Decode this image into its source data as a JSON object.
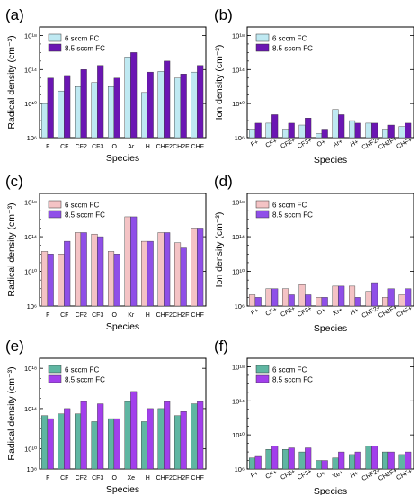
{
  "colors": {
    "ltblue": "#bfe9f2",
    "purple_dark": "#6b16b3",
    "pink": "#f4c3c5",
    "purple": "#8f4fe8",
    "teal": "#5fb6a2",
    "violet": "#a23fec",
    "axis": "#000000"
  },
  "chart_data": [
    {
      "panel": "(a)",
      "type": "bar",
      "scale": "log",
      "ylabel": "Radical density (cm⁻³)",
      "xlabel": "Species",
      "ylim": [
        1000000.0,
        1e+19
      ],
      "ticks": [
        "10¹⁸",
        "10¹⁴",
        "10¹⁰",
        "10⁶"
      ],
      "legend_position": "top-left",
      "categories": [
        "F",
        "CF",
        "CF2",
        "CF3",
        "O",
        "Ar",
        "H",
        "CHF2",
        "CH2F",
        "CHF"
      ],
      "series": [
        {
          "name": "6 sccm FC",
          "color_key": "ltblue",
          "values": [
            10000000000.0,
            300000000000.0,
            1000000000000.0,
            3000000000000.0,
            1000000000000.0,
            3000000000000000.0,
            200000000000.0,
            60000000000000.0,
            10000000000000.0,
            50000000000000.0
          ]
        },
        {
          "name": "8.5 sccm FC",
          "color_key": "purple_dark",
          "values": [
            10000000000000.0,
            20000000000000.0,
            100000000000000.0,
            300000000000000.0,
            10000000000000.0,
            1e+16,
            50000000000000.0,
            1000000000000000.0,
            30000000000000.0,
            300000000000000.0
          ]
        }
      ]
    },
    {
      "panel": "(b)",
      "type": "bar",
      "scale": "log",
      "ylabel": "Ion density (cm⁻³)",
      "xlabel": "Species",
      "ylim": [
        1000000.0,
        1e+19
      ],
      "ticks": [
        "10¹⁸",
        "10¹⁴",
        "10¹⁰",
        "10⁶"
      ],
      "legend_position": "top-left",
      "categories": [
        "F+",
        "CF+",
        "CF2+",
        "CF3+",
        "O+",
        "Ar+",
        "H+",
        "CHF2+",
        "CH2F+",
        "CHF+"
      ],
      "series": [
        {
          "name": "6 sccm FC",
          "color_key": "ltblue",
          "values": [
            10000000.0,
            50000000.0,
            10000000.0,
            30000000.0,
            3000000.0,
            2000000000.0,
            100000000.0,
            50000000.0,
            10000000.0,
            20000000.0
          ]
        },
        {
          "name": "8.5 sccm FC",
          "color_key": "purple_dark",
          "values": [
            50000000.0,
            500000000.0,
            50000000.0,
            200000000.0,
            10000000.0,
            500000000.0,
            50000000.0,
            50000000.0,
            30000000.0,
            50000000.0
          ]
        }
      ]
    },
    {
      "panel": "(c)",
      "type": "bar",
      "scale": "log",
      "ylabel": "Radical density (cm⁻³)",
      "xlabel": "Species",
      "ylim": [
        1000000.0,
        1e+19
      ],
      "ticks": [
        "10¹⁸",
        "10¹⁴",
        "10¹⁰",
        "10⁶"
      ],
      "legend_position": "top-left",
      "categories": [
        "F",
        "CF",
        "CF2",
        "CF3",
        "O",
        "Kr",
        "H",
        "CHF2",
        "CH2F",
        "CHF"
      ],
      "series": [
        {
          "name": "6 sccm FC",
          "color_key": "pink",
          "values": [
            2000000000000.0,
            1000000000000.0,
            300000000000000.0,
            200000000000000.0,
            2000000000000.0,
            2e+16,
            30000000000000.0,
            300000000000000.0,
            20000000000000.0,
            1000000000000000.0
          ]
        },
        {
          "name": "8.5 sccm FC",
          "color_key": "purple",
          "values": [
            1000000000000.0,
            30000000000000.0,
            300000000000000.0,
            100000000000000.0,
            1000000000000.0,
            2e+16,
            30000000000000.0,
            300000000000000.0,
            5000000000000.0,
            1000000000000000.0
          ]
        }
      ]
    },
    {
      "panel": "(d)",
      "type": "bar",
      "scale": "log",
      "ylabel": "Ion density (cm⁻³)",
      "xlabel": "Species",
      "ylim": [
        1000000.0,
        1e+19
      ],
      "ticks": [
        "10¹⁸",
        "10¹⁴",
        "10¹⁰",
        "10⁶"
      ],
      "legend_position": "top-left",
      "categories": [
        "F+",
        "CF+",
        "CF2+",
        "CF3+",
        "O+",
        "Kr+",
        "H+",
        "CHF2+",
        "CH2F+",
        "CHF+"
      ],
      "series": [
        {
          "name": "6 sccm FC",
          "color_key": "pink",
          "values": [
            20000000.0,
            100000000.0,
            100000000.0,
            300000000.0,
            10000000.0,
            200000000.0,
            200000000.0,
            50000000.0,
            10000000.0,
            20000000.0
          ]
        },
        {
          "name": "8.5 sccm FC",
          "color_key": "purple",
          "values": [
            10000000.0,
            100000000.0,
            20000000.0,
            20000000.0,
            10000000.0,
            200000000.0,
            10000000.0,
            500000000.0,
            100000000.0,
            100000000.0
          ]
        }
      ]
    },
    {
      "panel": "(e)",
      "type": "bar",
      "scale": "log",
      "ylabel": "Radical density (cm⁻³)",
      "xlabel": "Species",
      "ylim": [
        100000000.0,
        1e+19
      ],
      "ticks": [
        "10¹⁸",
        "10¹⁴",
        "10¹⁰",
        "10⁸"
      ],
      "legend_position": "top-left",
      "categories": [
        "F",
        "CF",
        "CF2",
        "CF3",
        "O",
        "Xe",
        "H",
        "CHF2",
        "CH2F",
        "CHF"
      ],
      "series": [
        {
          "name": "6 sccm FC",
          "color_key": "teal",
          "values": [
            20000000000000.0,
            30000000000000.0,
            30000000000000.0,
            5000000000000.0,
            10000000000000.0,
            500000000000000.0,
            5000000000000.0,
            100000000000000.0,
            20000000000000.0,
            300000000000000.0
          ]
        },
        {
          "name": "8.5 sccm FC",
          "color_key": "violet",
          "values": [
            10000000000000.0,
            100000000000000.0,
            500000000000000.0,
            300000000000000.0,
            10000000000000.0,
            5000000000000000.0,
            100000000000000.0,
            500000000000000.0,
            50000000000000.0,
            500000000000000.0
          ]
        }
      ]
    },
    {
      "panel": "(f)",
      "type": "bar",
      "scale": "log",
      "ylabel": "",
      "xlabel": "Species",
      "ylim": [
        1000000.0,
        1e+19
      ],
      "ticks": [
        "10¹⁸",
        "10¹⁴",
        "10¹⁰",
        "10⁶"
      ],
      "legend_position": "top-left",
      "categories": [
        "F+",
        "CF+",
        "CF2+",
        "CF3+",
        "O+",
        "Xe+",
        "H+",
        "CHF2+",
        "CH2F+",
        "CHF+"
      ],
      "series": [
        {
          "name": "6 sccm FC",
          "color_key": "teal",
          "values": [
            20000000.0,
            200000000.0,
            200000000.0,
            100000000.0,
            10000000.0,
            20000000.0,
            50000000.0,
            500000000.0,
            100000000.0,
            50000000.0
          ]
        },
        {
          "name": "8.5 sccm FC",
          "color_key": "violet",
          "values": [
            30000000.0,
            500000000.0,
            300000000.0,
            300000000.0,
            10000000.0,
            100000000.0,
            100000000.0,
            500000000.0,
            100000000.0,
            100000000.0
          ]
        }
      ]
    }
  ]
}
